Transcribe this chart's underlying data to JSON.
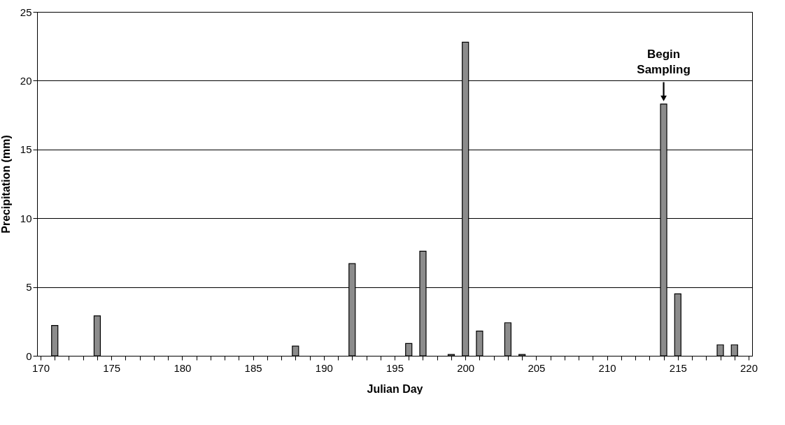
{
  "chart_data": {
    "type": "bar",
    "xlabel": "Julian Day",
    "ylabel": "Precipitation (mm)",
    "x": [
      171,
      174,
      188,
      192,
      196,
      197,
      199,
      200,
      201,
      203,
      204,
      214,
      215,
      218,
      219
    ],
    "values": [
      2.2,
      2.9,
      0.7,
      6.7,
      0.9,
      7.6,
      0.1,
      22.8,
      1.8,
      2.4,
      0.1,
      18.3,
      4.5,
      0.8,
      0.8
    ],
    "color": "#8c8c8c",
    "xlim": [
      170,
      220
    ],
    "xticks": [
      170,
      {
        "value": 171,
        "label": null
      },
      {
        "value": 172,
        "label": null
      },
      {
        "value": 173,
        "label": null
      },
      {
        "value": 174,
        "label": null
      },
      175,
      {
        "value": 176,
        "label": null
      },
      {
        "value": 177,
        "label": null
      },
      {
        "value": 178,
        "label": null
      },
      {
        "value": 179,
        "label": null
      },
      180,
      {
        "value": 181,
        "label": null
      },
      {
        "value": 182,
        "label": null
      },
      {
        "value": 183,
        "label": null
      },
      {
        "value": 184,
        "label": null
      },
      185,
      {
        "value": 186,
        "label": null
      },
      {
        "value": 187,
        "label": null
      },
      {
        "value": 188,
        "label": null
      },
      {
        "value": 189,
        "label": null
      },
      190,
      {
        "value": 191,
        "label": null
      },
      {
        "value": 192,
        "label": null
      },
      {
        "value": 193,
        "label": null
      },
      {
        "value": 194,
        "label": null
      },
      195,
      {
        "value": 196,
        "label": null
      },
      {
        "value": 197,
        "label": null
      },
      {
        "value": 198,
        "label": null
      },
      {
        "value": 199,
        "label": null
      },
      200,
      {
        "value": 201,
        "label": null
      },
      {
        "value": 202,
        "label": null
      },
      {
        "value": 203,
        "label": null
      },
      {
        "value": 204,
        "label": null
      },
      205,
      {
        "value": 206,
        "label": null
      },
      {
        "value": 207,
        "label": null
      },
      {
        "value": 208,
        "label": null
      },
      {
        "value": 209,
        "label": null
      },
      210,
      {
        "value": 211,
        "label": null
      },
      {
        "value": 212,
        "label": null
      },
      {
        "value": 213,
        "label": null
      },
      {
        "value": 214,
        "label": null
      },
      215,
      {
        "value": 216,
        "label": null
      },
      {
        "value": 217,
        "label": null
      },
      {
        "value": 218,
        "label": null
      },
      {
        "value": 219,
        "label": null
      },
      220
    ],
    "ylim": [
      0,
      25
    ],
    "yticks": [
      0,
      5,
      10,
      15,
      20,
      25
    ],
    "grid": "y",
    "annotations": [
      {
        "text": "Begin Sampling",
        "x": 214,
        "y": 18.3
      }
    ]
  }
}
